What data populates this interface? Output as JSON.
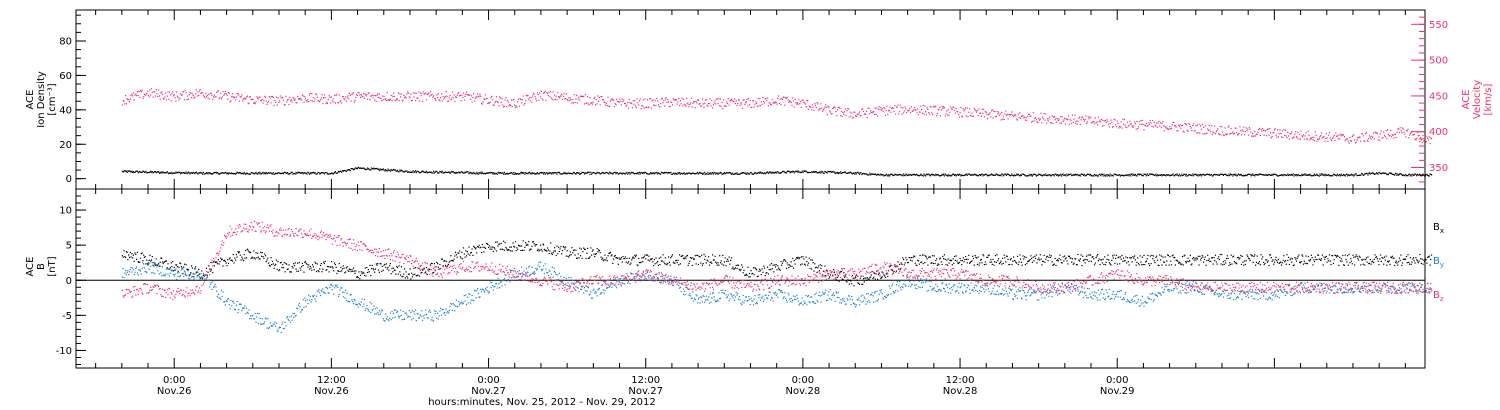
{
  "chart_data": [
    {
      "type": "scatter",
      "panel": "top",
      "ylabel_left": [
        "ACE",
        "Ion Density",
        "[cm⁻³]"
      ],
      "ylabel_right": [
        "ACE",
        "Velocity",
        "[km/s]"
      ],
      "ylim_left": [
        -6,
        98
      ],
      "ylim_right": [
        320,
        570
      ],
      "yticks_left": [
        0,
        20,
        40,
        60,
        80
      ],
      "yticks_right": [
        350,
        400,
        450,
        500,
        550
      ],
      "colors": {
        "density": "#000000",
        "velocity": "#ee3366"
      },
      "series": [
        {
          "axis": "left",
          "color_key": "density",
          "x": [
            -4,
            2,
            8,
            12,
            14,
            16,
            18,
            24,
            30,
            36,
            40,
            44,
            48,
            52,
            54,
            56,
            60,
            64,
            68,
            72,
            76,
            80,
            84,
            88,
            90,
            92,
            94,
            96
          ],
          "y": [
            4,
            3,
            3,
            3,
            6,
            5,
            4,
            3,
            3,
            3,
            3,
            3,
            4,
            3,
            2,
            2,
            2,
            2,
            2,
            2,
            2,
            2,
            2,
            2,
            2,
            3,
            2,
            2
          ]
        },
        {
          "axis": "right",
          "color_key": "velocity",
          "x": [
            -4,
            -2,
            0,
            2,
            4,
            6,
            8,
            10,
            12,
            14,
            16,
            18,
            20,
            22,
            24,
            26,
            28,
            30,
            32,
            34,
            36,
            38,
            40,
            42,
            44,
            46,
            48,
            50,
            52,
            54,
            56,
            58,
            60,
            62,
            64,
            66,
            68,
            70,
            72,
            74,
            76,
            78,
            80,
            82,
            84,
            86,
            88,
            90,
            92,
            94,
            96
          ],
          "y": [
            445,
            455,
            450,
            455,
            450,
            445,
            444,
            448,
            446,
            450,
            450,
            450,
            450,
            450,
            445,
            440,
            452,
            448,
            445,
            440,
            440,
            442,
            440,
            440,
            440,
            445,
            440,
            430,
            425,
            430,
            432,
            430,
            428,
            425,
            422,
            420,
            418,
            415,
            412,
            410,
            408,
            405,
            402,
            400,
            398,
            395,
            393,
            390,
            395,
            400,
            385
          ]
        }
      ]
    },
    {
      "type": "scatter",
      "panel": "bottom",
      "ylabel_left": [
        "ACE",
        "B",
        "[nT]"
      ],
      "ylim": [
        -12.5,
        13
      ],
      "yticks": [
        -10,
        -5,
        0,
        5,
        10
      ],
      "zero_line": true,
      "x_axis": {
        "range_hours": [
          -7.5,
          95.5
        ],
        "title": "hours:minutes, Nov. 25, 2012 - Nov. 29, 2012",
        "ticks": [
          {
            "hour": 0,
            "time": "0:00",
            "date": "Nov.26"
          },
          {
            "hour": 12,
            "time": "12:00",
            "date": "Nov.26"
          },
          {
            "hour": 24,
            "time": "0:00",
            "date": "Nov.27"
          },
          {
            "hour": 36,
            "time": "12:00",
            "date": "Nov.27"
          },
          {
            "hour": 48,
            "time": "0:00",
            "date": "Nov.28"
          },
          {
            "hour": 60,
            "time": "12:00",
            "date": "Nov.28"
          },
          {
            "hour": 72,
            "time": "0:00",
            "date": "Nov.29"
          }
        ]
      },
      "legend": [
        {
          "label": "B",
          "sub": "x",
          "color": "#000000"
        },
        {
          "label": "B",
          "sub": "y",
          "color": "#1a7fd6"
        },
        {
          "label": "B",
          "sub": "z",
          "color": "#ee3366"
        }
      ],
      "legend_placement": "right",
      "series": [
        {
          "name": "Bx",
          "color": "#000000",
          "x": [
            -4,
            -2,
            0,
            2,
            4,
            6,
            8,
            10,
            12,
            14,
            16,
            18,
            20,
            22,
            24,
            26,
            28,
            30,
            32,
            34,
            36,
            38,
            40,
            42,
            44,
            46,
            48,
            50,
            52,
            54,
            56,
            58,
            60,
            62,
            64,
            66,
            68,
            70,
            72,
            74,
            76,
            78,
            80,
            82,
            84,
            86,
            88,
            90,
            92,
            94,
            96
          ],
          "y": [
            4,
            3,
            2,
            1,
            3,
            4,
            2,
            2,
            2,
            1,
            2,
            1,
            2,
            4,
            5,
            5,
            5,
            4,
            4,
            3,
            3,
            3,
            3,
            3,
            1,
            2,
            3,
            1,
            0,
            1,
            3,
            3,
            3,
            3,
            3,
            3,
            3,
            3,
            3,
            3,
            3,
            3,
            3,
            3,
            3,
            3,
            3,
            3,
            3,
            3,
            3
          ]
        },
        {
          "name": "By",
          "color": "#1a7fd6",
          "x": [
            -4,
            -2,
            0,
            2,
            4,
            6,
            8,
            10,
            12,
            14,
            16,
            18,
            20,
            22,
            24,
            26,
            28,
            30,
            32,
            34,
            36,
            38,
            40,
            42,
            44,
            46,
            48,
            50,
            52,
            54,
            56,
            58,
            60,
            62,
            64,
            66,
            68,
            70,
            72,
            74,
            76,
            78,
            80,
            82,
            84,
            86,
            88,
            90,
            92,
            94,
            96
          ],
          "y": [
            1,
            2,
            1,
            1,
            -3,
            -5,
            -7,
            -3,
            -1,
            -3,
            -5,
            -5,
            -5,
            -3,
            -1,
            1,
            2,
            0,
            -2,
            0,
            1,
            0,
            -3,
            -2,
            -3,
            -2,
            -3,
            -2,
            -3,
            -2,
            0,
            -1,
            -1,
            -1,
            -2,
            -2,
            -1,
            -2,
            -2,
            -3,
            -1,
            -1,
            -2,
            -2,
            -2,
            -1,
            -1,
            -1,
            -1,
            -1,
            -1
          ]
        },
        {
          "name": "Bz",
          "color": "#ee3366",
          "x": [
            -4,
            -2,
            0,
            2,
            4,
            6,
            8,
            10,
            12,
            14,
            16,
            18,
            20,
            22,
            24,
            26,
            28,
            30,
            32,
            34,
            36,
            38,
            40,
            42,
            44,
            46,
            48,
            50,
            52,
            54,
            56,
            58,
            60,
            62,
            64,
            66,
            68,
            70,
            72,
            74,
            76,
            78,
            80,
            82,
            84,
            86,
            88,
            90,
            92,
            94,
            96
          ],
          "y": [
            -2,
            -1,
            -2,
            -1,
            7,
            8,
            7,
            7,
            6,
            5,
            4,
            3,
            1,
            2,
            2,
            1,
            0,
            -1,
            0,
            0,
            1,
            0,
            -1,
            0,
            -1,
            0,
            0,
            1,
            1,
            2,
            1,
            1,
            1,
            0,
            0,
            -1,
            -1,
            0,
            1,
            0,
            0,
            -1,
            -1,
            -1,
            -1,
            -1,
            -1,
            -1,
            -1,
            -1,
            -1
          ]
        }
      ]
    }
  ]
}
